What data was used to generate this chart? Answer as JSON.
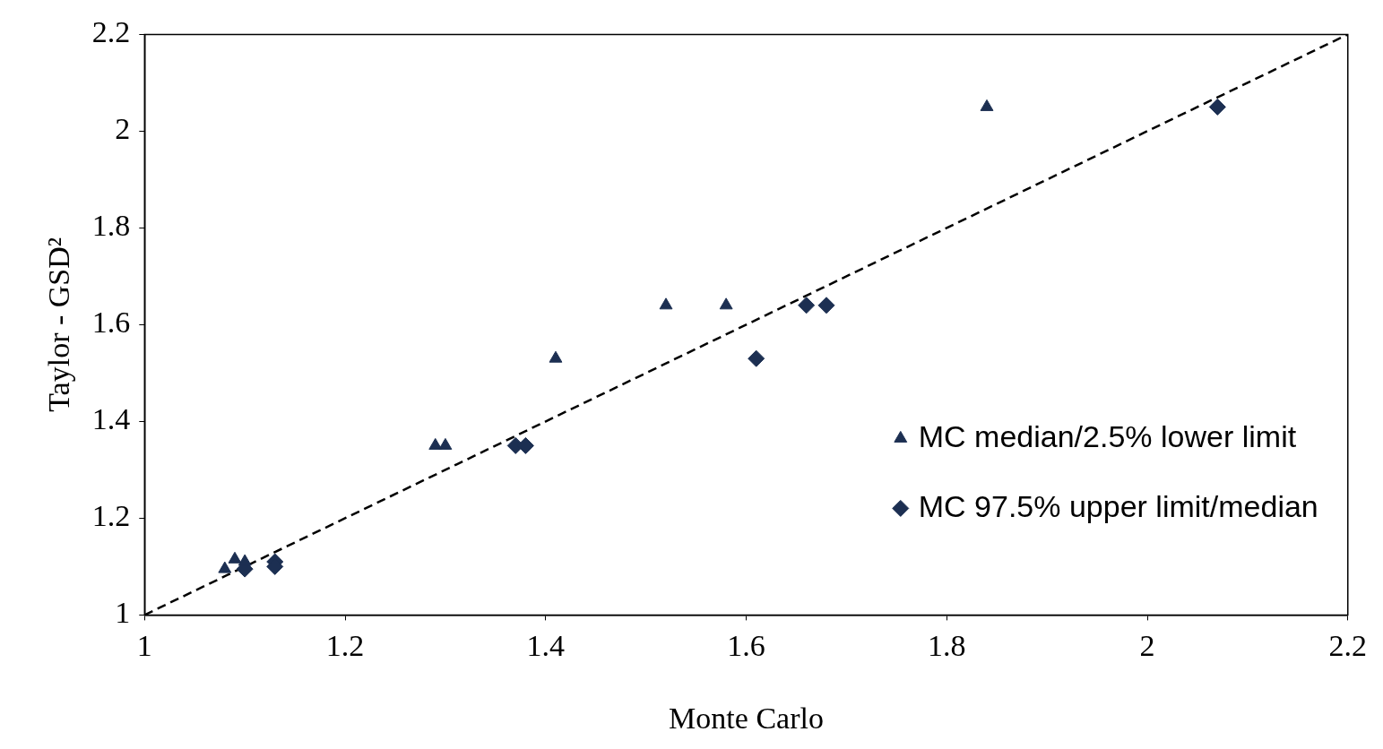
{
  "chart_data": {
    "type": "scatter",
    "xlabel": "Monte Carlo",
    "ylabel": "Taylor - GSD²",
    "xlim": [
      1,
      2.2
    ],
    "ylim": [
      1,
      2.2
    ],
    "xticks": [
      1,
      1.2,
      1.4,
      1.6,
      1.8,
      2,
      2.2
    ],
    "yticks": [
      1,
      1.2,
      1.4,
      1.6,
      1.8,
      2,
      2.2
    ],
    "grid": false,
    "legend": "bottom right",
    "series": [
      {
        "name": "MC median/2.5% lower limit",
        "color": "#1c2f52",
        "marker": "triangle",
        "x": [
          1.08,
          1.09,
          1.1,
          1.29,
          1.3,
          1.41,
          1.52,
          1.58,
          1.84
        ],
        "values": [
          1.095,
          1.115,
          1.11,
          1.35,
          1.35,
          1.53,
          1.64,
          1.64,
          2.05
        ]
      },
      {
        "name": "MC 97.5% upper limit/median",
        "color": "#1c2f52",
        "marker": "diamond",
        "x": [
          1.1,
          1.13,
          1.13,
          1.37,
          1.38,
          1.61,
          1.66,
          1.68,
          2.07
        ],
        "values": [
          1.095,
          1.11,
          1.1,
          1.35,
          1.35,
          1.53,
          1.64,
          1.64,
          2.05
        ]
      },
      {
        "type": "line",
        "color": "#000000",
        "marker": "none",
        "line_style": "dashed",
        "x": [
          1,
          2.2
        ],
        "values": [
          1,
          2.2
        ]
      }
    ]
  }
}
